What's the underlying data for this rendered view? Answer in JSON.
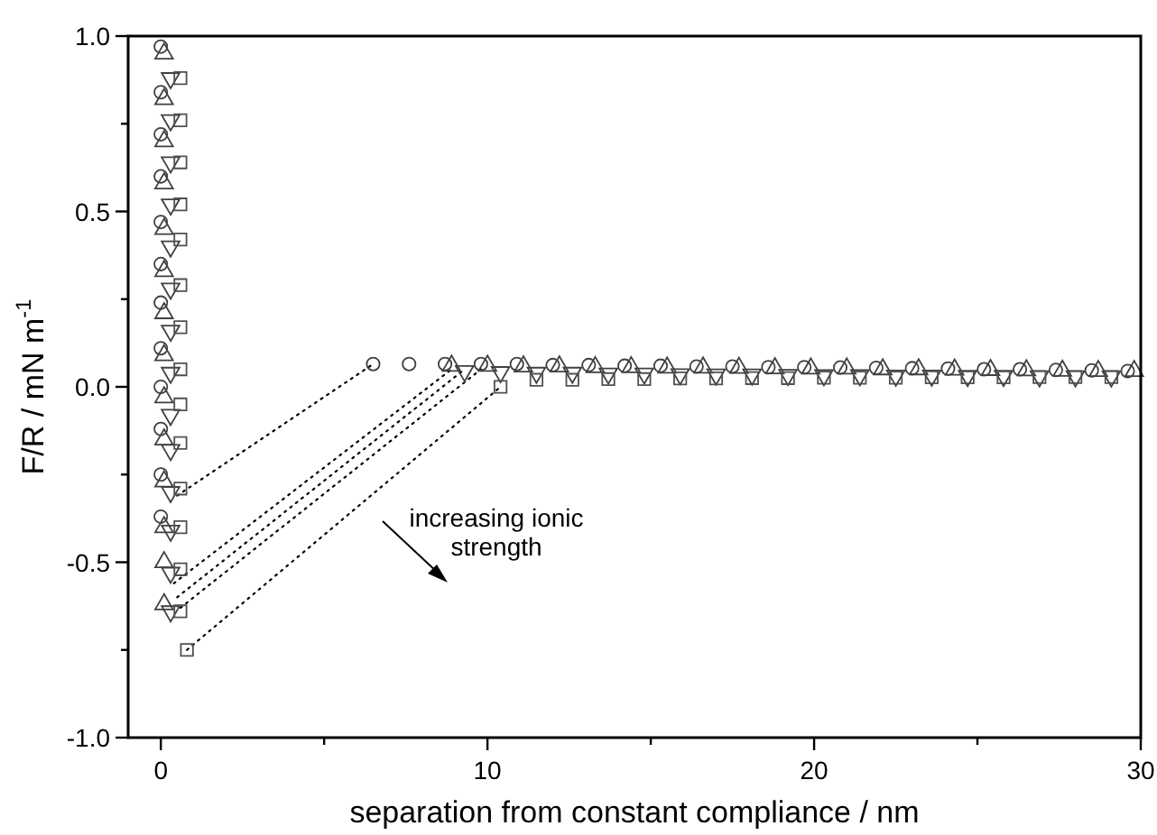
{
  "chart_data": {
    "type": "scatter",
    "xlabel": "separation from constant compliance / nm",
    "ylabel": "F/R / mN m$^{-1}$",
    "xlim": [
      -1,
      30
    ],
    "ylim": [
      -1,
      1
    ],
    "xticks": [
      0,
      {
        "value": 5,
        "label": null
      },
      10,
      {
        "value": 15,
        "label": null
      },
      20,
      {
        "value": 25,
        "label": null
      },
      30
    ],
    "yticks": [
      {
        "value": -1,
        "label": "-1.0"
      },
      {
        "value": -0.75,
        "label": null
      },
      {
        "value": -0.5,
        "label": "-0.5"
      },
      {
        "value": -0.25,
        "label": null
      },
      {
        "value": 0,
        "label": "0.0"
      },
      {
        "value": 0.25,
        "label": null
      },
      {
        "value": 0.5,
        "label": "0.5"
      },
      {
        "value": 0.75,
        "label": null
      },
      {
        "value": 1,
        "label": "1.0"
      }
    ],
    "grid": false,
    "annotations": [
      "increasing ionic strength"
    ],
    "series": [
      {
        "type": "line",
        "line_style": "dotted",
        "color": "#000000",
        "x": [
          0.5,
          6.5
        ],
        "values": [
          -0.31,
          0.065
        ]
      },
      {
        "type": "line",
        "line_style": "dotted",
        "color": "#000000",
        "x": [
          0.4,
          8.9
        ],
        "values": [
          -0.56,
          0.05
        ]
      },
      {
        "type": "line",
        "line_style": "dotted",
        "color": "#000000",
        "x": [
          0.5,
          9.3
        ],
        "values": [
          -0.6,
          0.05
        ]
      },
      {
        "type": "line",
        "line_style": "dotted",
        "color": "#000000",
        "x": [
          0.6,
          9.8
        ],
        "values": [
          -0.63,
          0.05
        ]
      },
      {
        "type": "line",
        "line_style": "dotted",
        "color": "#000000",
        "x": [
          0.8,
          10.4
        ],
        "values": [
          -0.75,
          0.0
        ]
      },
      {
        "marker": "circle",
        "color": "#404040",
        "x": [
          0,
          0,
          0,
          0,
          0,
          0,
          0,
          0,
          0,
          0,
          0,
          0,
          6.5,
          7.6,
          8.7,
          9.8,
          10.9,
          12.0,
          13.1,
          14.2,
          15.3,
          16.4,
          17.5,
          18.6,
          19.7,
          20.8,
          21.9,
          23.0,
          24.1,
          25.2,
          26.3,
          27.4,
          28.5,
          29.6
        ],
        "values": [
          0.97,
          0.84,
          0.72,
          0.6,
          0.47,
          0.35,
          0.24,
          0.11,
          0.0,
          -0.12,
          -0.25,
          -0.37,
          0.065,
          0.065,
          0.065,
          0.065,
          0.065,
          0.062,
          0.062,
          0.06,
          0.06,
          0.058,
          0.058,
          0.056,
          0.056,
          0.055,
          0.054,
          0.053,
          0.052,
          0.05,
          0.05,
          0.048,
          0.047,
          0.045
        ]
      },
      {
        "marker": "triangle",
        "color": "#404040",
        "x": [
          0.1,
          0.1,
          0.1,
          0.1,
          0.1,
          0.1,
          0.1,
          0.1,
          0.1,
          0.1,
          0.1,
          0.1,
          0.1,
          0.1,
          8.9,
          10.0,
          11.1,
          12.2,
          13.3,
          14.4,
          15.5,
          16.6,
          17.7,
          18.8,
          19.9,
          21.0,
          22.1,
          23.2,
          24.3,
          25.4,
          26.5,
          27.6,
          28.7,
          29.8
        ],
        "values": [
          0.95,
          0.82,
          0.7,
          0.58,
          0.45,
          0.33,
          0.21,
          0.09,
          -0.03,
          -0.15,
          -0.27,
          -0.4,
          -0.5,
          -0.62,
          0.06,
          0.06,
          0.058,
          0.058,
          0.056,
          0.056,
          0.055,
          0.055,
          0.054,
          0.053,
          0.052,
          0.052,
          0.05,
          0.05,
          0.049,
          0.048,
          0.047,
          0.046,
          0.045,
          0.045
        ]
      },
      {
        "marker": "triangle-down",
        "color": "#404040",
        "x": [
          0.3,
          0.3,
          0.3,
          0.3,
          0.3,
          0.3,
          0.3,
          0.3,
          0.3,
          0.3,
          0.3,
          0.3,
          0.3,
          0.3,
          9.3,
          10.4,
          11.5,
          12.6,
          13.7,
          14.8,
          15.9,
          17.0,
          18.1,
          19.2,
          20.3,
          21.4,
          22.5,
          23.6,
          24.7,
          25.8,
          26.9,
          28.0,
          29.1
        ],
        "values": [
          0.88,
          0.76,
          0.64,
          0.52,
          0.4,
          0.28,
          0.16,
          0.04,
          -0.08,
          -0.18,
          -0.3,
          -0.41,
          -0.53,
          -0.64,
          0.045,
          0.042,
          0.04,
          0.04,
          0.038,
          0.038,
          0.036,
          0.035,
          0.035,
          0.034,
          0.033,
          0.033,
          0.032,
          0.032,
          0.031,
          0.031,
          0.03,
          0.03,
          0.03
        ]
      },
      {
        "marker": "square",
        "color": "#505050",
        "x": [
          0.6,
          0.6,
          0.6,
          0.6,
          0.6,
          0.6,
          0.6,
          0.6,
          0.6,
          0.6,
          0.6,
          0.6,
          0.6,
          0.6,
          0.8,
          10.4,
          11.5,
          12.6,
          13.7,
          14.8,
          15.9,
          17.0,
          18.1,
          19.2,
          20.3,
          21.4,
          22.5,
          23.6,
          24.7,
          25.8,
          26.9,
          28.0,
          29.1
        ],
        "values": [
          0.88,
          0.76,
          0.64,
          0.52,
          0.42,
          0.29,
          0.17,
          0.05,
          -0.05,
          -0.16,
          -0.29,
          -0.4,
          -0.52,
          -0.64,
          -0.75,
          0.0,
          0.02,
          0.02,
          0.022,
          0.022,
          0.024,
          0.024,
          0.025,
          0.025,
          0.026,
          0.026,
          0.026,
          0.027,
          0.027,
          0.027,
          0.028,
          0.028,
          0.028
        ]
      }
    ]
  }
}
